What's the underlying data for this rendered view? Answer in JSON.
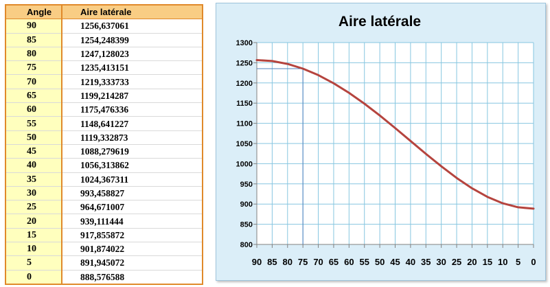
{
  "table": {
    "headers": [
      "Angle",
      "Aire latérale"
    ],
    "rows": [
      [
        "90",
        "1256,637061"
      ],
      [
        "85",
        "1254,248399"
      ],
      [
        "80",
        "1247,128023"
      ],
      [
        "75",
        "1235,413151"
      ],
      [
        "70",
        "1219,333733"
      ],
      [
        "65",
        "1199,214287"
      ],
      [
        "60",
        "1175,476336"
      ],
      [
        "55",
        "1148,641227"
      ],
      [
        "50",
        "1119,332873"
      ],
      [
        "45",
        "1088,279619"
      ],
      [
        "40",
        "1056,313862"
      ],
      [
        "35",
        "1024,367311"
      ],
      [
        "30",
        "993,458827"
      ],
      [
        "25",
        "964,671007"
      ],
      [
        "20",
        "939,111444"
      ],
      [
        "15",
        "917,855872"
      ],
      [
        "10",
        "901,874022"
      ],
      [
        "5",
        "891,945072"
      ],
      [
        "0",
        "888,576588"
      ]
    ]
  },
  "chart_data": {
    "type": "line",
    "title": "Aire latérale",
    "x": [
      90,
      85,
      80,
      75,
      70,
      65,
      60,
      55,
      50,
      45,
      40,
      35,
      30,
      25,
      20,
      15,
      10,
      5,
      0
    ],
    "series": [
      {
        "values": [
          1256.637061,
          1254.248399,
          1247.128023,
          1235.413151,
          1219.333733,
          1199.214287,
          1175.476336,
          1148.641227,
          1119.332873,
          1088.279619,
          1056.313862,
          1024.367311,
          993.458827,
          964.671007,
          939.111444,
          917.855872,
          901.874022,
          891.945072,
          888.576588
        ],
        "color": "#b5443e"
      }
    ],
    "xlim": [
      90,
      0
    ],
    "ylim": [
      800,
      1300
    ],
    "y_ticks": [
      "1300",
      "1250",
      "1200",
      "1150",
      "1100",
      "1050",
      "1000",
      "950",
      "900",
      "850",
      "800"
    ],
    "x_ticks": [
      "90",
      "85",
      "80",
      "75",
      "70",
      "65",
      "60",
      "55",
      "50",
      "45",
      "40",
      "35",
      "30",
      "25",
      "20",
      "15",
      "10",
      "5",
      "0"
    ],
    "grid": true,
    "highlight": {
      "x": 75,
      "y": 1235.413151,
      "color": "#4f81bd"
    },
    "colors": {
      "background": "#dbeef8",
      "plot_area": "#ffffff",
      "grid": "#86c6e0"
    }
  }
}
